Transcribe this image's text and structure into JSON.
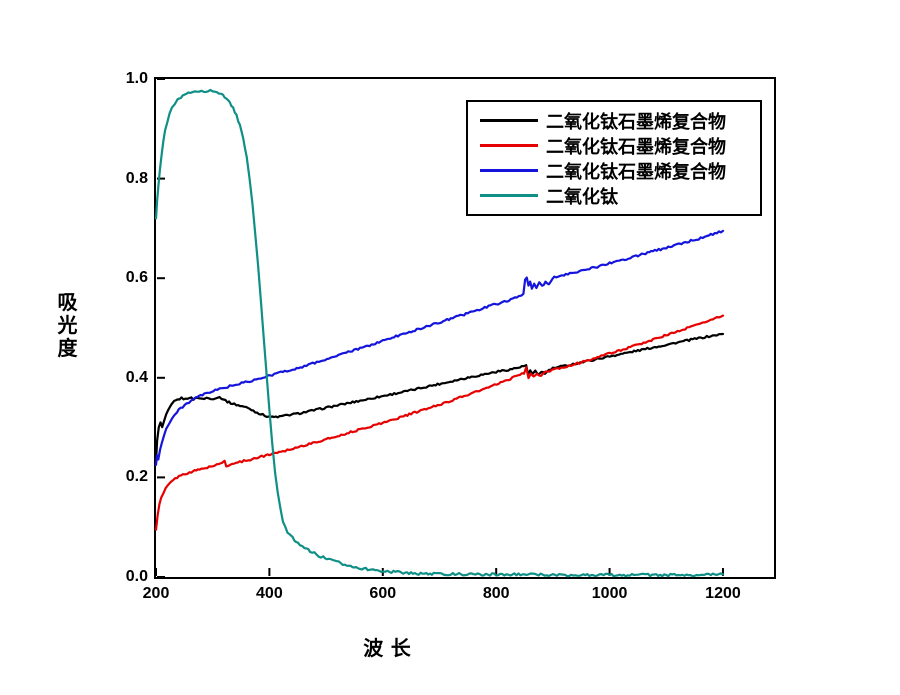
{
  "figure": {
    "background": "#ffffff",
    "axis_color": "#000000"
  },
  "chart_data": {
    "type": "line",
    "title": "",
    "xlabel": "波 长",
    "ylabel": "吸光度",
    "xlim": [
      200,
      1290
    ],
    "ylim": [
      0,
      1
    ],
    "x_ticks": [
      "200",
      "400",
      "600",
      "800",
      "1000",
      "1200"
    ],
    "x_tick_values": [
      200,
      400,
      600,
      800,
      1000,
      1200
    ],
    "y_ticks": [
      "0.0",
      "0.2",
      "0.4",
      "0.6",
      "0.8",
      "1.0"
    ],
    "y_tick_values": [
      0.0,
      0.2,
      0.4,
      0.6,
      0.8,
      1.0
    ],
    "grid": false,
    "legend_position": "top-center-right",
    "series": [
      {
        "name": "二氧化钛石墨烯复合物",
        "color": "#000000",
        "width": 2.2,
        "noise": 0.0018,
        "points": [
          [
            200,
            0.23
          ],
          [
            202,
            0.275
          ],
          [
            205,
            0.3
          ],
          [
            208,
            0.31
          ],
          [
            211,
            0.3
          ],
          [
            214,
            0.312
          ],
          [
            218,
            0.325
          ],
          [
            222,
            0.335
          ],
          [
            227,
            0.345
          ],
          [
            232,
            0.352
          ],
          [
            238,
            0.356
          ],
          [
            245,
            0.359
          ],
          [
            252,
            0.357
          ],
          [
            259,
            0.361
          ],
          [
            266,
            0.357
          ],
          [
            273,
            0.361
          ],
          [
            281,
            0.357
          ],
          [
            289,
            0.36
          ],
          [
            297,
            0.357
          ],
          [
            305,
            0.36
          ],
          [
            312,
            0.361
          ],
          [
            319,
            0.357
          ],
          [
            326,
            0.352
          ],
          [
            335,
            0.348
          ],
          [
            345,
            0.345
          ],
          [
            355,
            0.342
          ],
          [
            365,
            0.338
          ],
          [
            375,
            0.332
          ],
          [
            385,
            0.327
          ],
          [
            395,
            0.323
          ],
          [
            405,
            0.321
          ],
          [
            418,
            0.322
          ],
          [
            432,
            0.325
          ],
          [
            450,
            0.328
          ],
          [
            475,
            0.334
          ],
          [
            500,
            0.34
          ],
          [
            530,
            0.347
          ],
          [
            560,
            0.354
          ],
          [
            590,
            0.361
          ],
          [
            620,
            0.368
          ],
          [
            650,
            0.375
          ],
          [
            680,
            0.383
          ],
          [
            710,
            0.39
          ],
          [
            740,
            0.398
          ],
          [
            770,
            0.405
          ],
          [
            800,
            0.412
          ],
          [
            825,
            0.417
          ],
          [
            845,
            0.422
          ],
          [
            853,
            0.425
          ],
          [
            856,
            0.407
          ],
          [
            860,
            0.414
          ],
          [
            864,
            0.406
          ],
          [
            869,
            0.413
          ],
          [
            874,
            0.406
          ],
          [
            880,
            0.413
          ],
          [
            886,
            0.408
          ],
          [
            893,
            0.415
          ],
          [
            900,
            0.419
          ],
          [
            925,
            0.425
          ],
          [
            950,
            0.431
          ],
          [
            975,
            0.437
          ],
          [
            1000,
            0.443
          ],
          [
            1030,
            0.45
          ],
          [
            1060,
            0.457
          ],
          [
            1090,
            0.464
          ],
          [
            1120,
            0.471
          ],
          [
            1150,
            0.478
          ],
          [
            1175,
            0.483
          ],
          [
            1200,
            0.488
          ]
        ]
      },
      {
        "name": "二氧化钛石墨烯复合物",
        "color": "#e60000",
        "width": 2.2,
        "noise": 0.0018,
        "points": [
          [
            200,
            0.095
          ],
          [
            203,
            0.125
          ],
          [
            206,
            0.145
          ],
          [
            209,
            0.158
          ],
          [
            213,
            0.168
          ],
          [
            217,
            0.177
          ],
          [
            221,
            0.184
          ],
          [
            226,
            0.19
          ],
          [
            231,
            0.195
          ],
          [
            237,
            0.2
          ],
          [
            244,
            0.204
          ],
          [
            251,
            0.207
          ],
          [
            259,
            0.21
          ],
          [
            268,
            0.213
          ],
          [
            277,
            0.216
          ],
          [
            287,
            0.219
          ],
          [
            297,
            0.222
          ],
          [
            307,
            0.225
          ],
          [
            316,
            0.229
          ],
          [
            321,
            0.233
          ],
          [
            324,
            0.223
          ],
          [
            331,
            0.226
          ],
          [
            341,
            0.229
          ],
          [
            355,
            0.233
          ],
          [
            370,
            0.237
          ],
          [
            390,
            0.243
          ],
          [
            410,
            0.249
          ],
          [
            435,
            0.256
          ],
          [
            460,
            0.264
          ],
          [
            490,
            0.273
          ],
          [
            520,
            0.283
          ],
          [
            550,
            0.293
          ],
          [
            580,
            0.303
          ],
          [
            610,
            0.313
          ],
          [
            640,
            0.324
          ],
          [
            670,
            0.335
          ],
          [
            700,
            0.346
          ],
          [
            730,
            0.358
          ],
          [
            760,
            0.37
          ],
          [
            790,
            0.382
          ],
          [
            815,
            0.393
          ],
          [
            835,
            0.403
          ],
          [
            849,
            0.41
          ],
          [
            853,
            0.421
          ],
          [
            857,
            0.399
          ],
          [
            861,
            0.407
          ],
          [
            866,
            0.401
          ],
          [
            872,
            0.408
          ],
          [
            879,
            0.404
          ],
          [
            887,
            0.411
          ],
          [
            895,
            0.414
          ],
          [
            905,
            0.417
          ],
          [
            925,
            0.423
          ],
          [
            950,
            0.431
          ],
          [
            975,
            0.44
          ],
          [
            1000,
            0.449
          ],
          [
            1030,
            0.459
          ],
          [
            1060,
            0.47
          ],
          [
            1090,
            0.482
          ],
          [
            1120,
            0.493
          ],
          [
            1150,
            0.505
          ],
          [
            1175,
            0.515
          ],
          [
            1200,
            0.525
          ]
        ]
      },
      {
        "name": "二氧化钛石墨烯复合物",
        "color": "#1414dc",
        "width": 2.2,
        "noise": 0.002,
        "points": [
          [
            200,
            0.225
          ],
          [
            202,
            0.245
          ],
          [
            204,
            0.235
          ],
          [
            207,
            0.255
          ],
          [
            210,
            0.27
          ],
          [
            214,
            0.285
          ],
          [
            218,
            0.297
          ],
          [
            223,
            0.308
          ],
          [
            228,
            0.318
          ],
          [
            234,
            0.327
          ],
          [
            240,
            0.335
          ],
          [
            247,
            0.342
          ],
          [
            254,
            0.348
          ],
          [
            262,
            0.354
          ],
          [
            270,
            0.359
          ],
          [
            279,
            0.364
          ],
          [
            288,
            0.368
          ],
          [
            298,
            0.372
          ],
          [
            308,
            0.376
          ],
          [
            320,
            0.38
          ],
          [
            333,
            0.384
          ],
          [
            347,
            0.388
          ],
          [
            362,
            0.392
          ],
          [
            377,
            0.396
          ],
          [
            392,
            0.401
          ],
          [
            405,
            0.406
          ],
          [
            420,
            0.411
          ],
          [
            438,
            0.416
          ],
          [
            458,
            0.422
          ],
          [
            480,
            0.43
          ],
          [
            505,
            0.439
          ],
          [
            532,
            0.449
          ],
          [
            560,
            0.459
          ],
          [
            590,
            0.47
          ],
          [
            620,
            0.482
          ],
          [
            650,
            0.493
          ],
          [
            680,
            0.504
          ],
          [
            710,
            0.515
          ],
          [
            740,
            0.526
          ],
          [
            770,
            0.537
          ],
          [
            800,
            0.548
          ],
          [
            822,
            0.556
          ],
          [
            840,
            0.562
          ],
          [
            848,
            0.567
          ],
          [
            851,
            0.597
          ],
          [
            854,
            0.603
          ],
          [
            857,
            0.585
          ],
          [
            860,
            0.595
          ],
          [
            863,
            0.58
          ],
          [
            867,
            0.59
          ],
          [
            871,
            0.58
          ],
          [
            876,
            0.591
          ],
          [
            881,
            0.583
          ],
          [
            887,
            0.593
          ],
          [
            893,
            0.586
          ],
          [
            899,
            0.6
          ],
          [
            906,
            0.603
          ],
          [
            916,
            0.606
          ],
          [
            930,
            0.61
          ],
          [
            950,
            0.615
          ],
          [
            975,
            0.622
          ],
          [
            1000,
            0.63
          ],
          [
            1030,
            0.639
          ],
          [
            1060,
            0.649
          ],
          [
            1090,
            0.658
          ],
          [
            1120,
            0.668
          ],
          [
            1150,
            0.677
          ],
          [
            1175,
            0.686
          ],
          [
            1200,
            0.695
          ]
        ]
      },
      {
        "name": "二氧化钛",
        "color": "#0f8f85",
        "width": 2.2,
        "noise": 0.0025,
        "points": [
          [
            200,
            0.72
          ],
          [
            202,
            0.755
          ],
          [
            204,
            0.785
          ],
          [
            207,
            0.82
          ],
          [
            210,
            0.85
          ],
          [
            213,
            0.875
          ],
          [
            216,
            0.895
          ],
          [
            220,
            0.915
          ],
          [
            224,
            0.93
          ],
          [
            228,
            0.941
          ],
          [
            233,
            0.95
          ],
          [
            238,
            0.957
          ],
          [
            244,
            0.963
          ],
          [
            250,
            0.967
          ],
          [
            257,
            0.971
          ],
          [
            264,
            0.974
          ],
          [
            272,
            0.976
          ],
          [
            280,
            0.977
          ],
          [
            288,
            0.976
          ],
          [
            296,
            0.977
          ],
          [
            304,
            0.974
          ],
          [
            311,
            0.971
          ],
          [
            318,
            0.967
          ],
          [
            324,
            0.961
          ],
          [
            330,
            0.953
          ],
          [
            336,
            0.942
          ],
          [
            342,
            0.927
          ],
          [
            348,
            0.906
          ],
          [
            354,
            0.878
          ],
          [
            360,
            0.843
          ],
          [
            365,
            0.8
          ],
          [
            370,
            0.748
          ],
          [
            375,
            0.69
          ],
          [
            380,
            0.625
          ],
          [
            385,
            0.555
          ],
          [
            390,
            0.482
          ],
          [
            395,
            0.408
          ],
          [
            400,
            0.335
          ],
          [
            405,
            0.268
          ],
          [
            410,
            0.21
          ],
          [
            415,
            0.165
          ],
          [
            420,
            0.133
          ],
          [
            424,
            0.113
          ],
          [
            428,
            0.1
          ],
          [
            432,
            0.091
          ],
          [
            436,
            0.084
          ],
          [
            441,
            0.078
          ],
          [
            447,
            0.072
          ],
          [
            454,
            0.066
          ],
          [
            462,
            0.059
          ],
          [
            472,
            0.052
          ],
          [
            483,
            0.045
          ],
          [
            495,
            0.039
          ],
          [
            508,
            0.034
          ],
          [
            522,
            0.029
          ],
          [
            537,
            0.024
          ],
          [
            553,
            0.02
          ],
          [
            570,
            0.016
          ],
          [
            590,
            0.013
          ],
          [
            612,
            0.011
          ],
          [
            636,
            0.009
          ],
          [
            660,
            0.007
          ],
          [
            690,
            0.006
          ],
          [
            720,
            0.006
          ],
          [
            760,
            0.005
          ],
          [
            800,
            0.005
          ],
          [
            850,
            0.005
          ],
          [
            900,
            0.004
          ],
          [
            950,
            0.004
          ],
          [
            1000,
            0.004
          ],
          [
            1050,
            0.004
          ],
          [
            1100,
            0.004
          ],
          [
            1150,
            0.004
          ],
          [
            1200,
            0.005
          ]
        ]
      }
    ]
  }
}
